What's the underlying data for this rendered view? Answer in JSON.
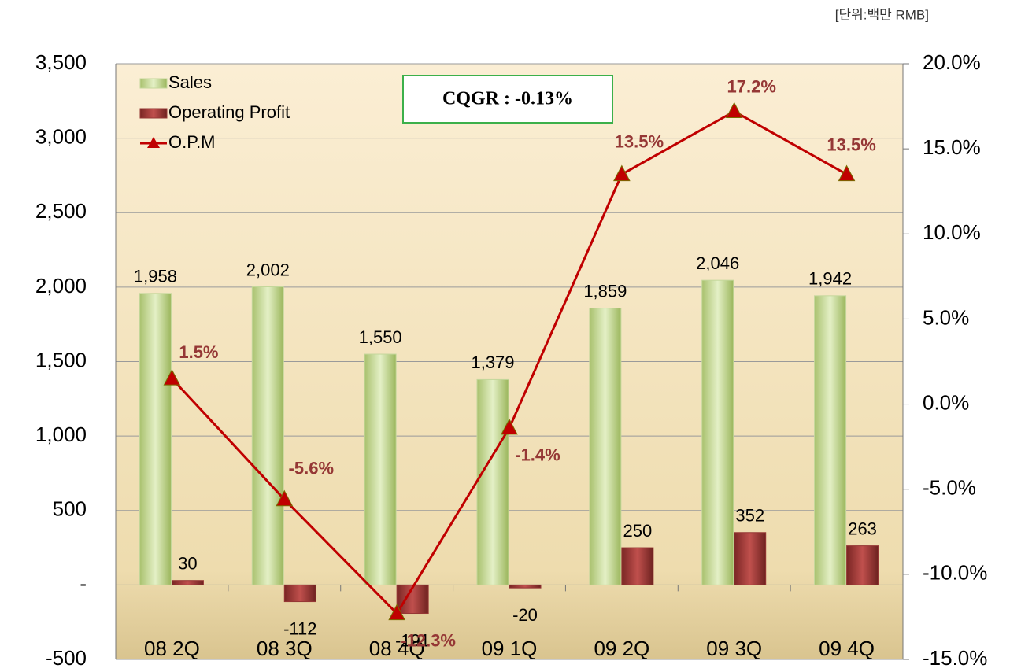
{
  "chart_data": {
    "type": "bar-line",
    "unit_note": "[단위:백만 RMB]",
    "annotation": "CQGR : -0.13%",
    "categories": [
      "08 2Q",
      "08 3Q",
      "08 4Q",
      "09 1Q",
      "09 2Q",
      "09 3Q",
      "09 4Q"
    ],
    "series": [
      {
        "name": "Sales",
        "type": "bar",
        "color": "#c4d79b",
        "values": [
          1958,
          2002,
          1550,
          1379,
          1859,
          2046,
          1942
        ],
        "value_labels": [
          "1,958",
          "2,002",
          "1,550",
          "1,379",
          "1,859",
          "2,046",
          "1,942"
        ]
      },
      {
        "name": "Operating Profit",
        "type": "bar",
        "color": "#953735",
        "values": [
          30,
          -112,
          -191,
          -20,
          250,
          352,
          263
        ]
      },
      {
        "name": "O.P.M",
        "type": "line",
        "axis": "y2",
        "color": "#c00000",
        "values": [
          1.5,
          -5.6,
          -12.3,
          -1.4,
          13.5,
          17.2,
          13.5
        ],
        "value_labels": [
          "1.5%",
          "-5.6%",
          "-12.3%",
          "-1.4%",
          "13.5%",
          "17.2%",
          "13.5%"
        ]
      }
    ],
    "ylim": [
      -500,
      3500
    ],
    "yticks": [
      -500,
      {
        "value": 0,
        "label": "-"
      },
      500,
      {
        "value": 1000,
        "label": "1,000"
      },
      {
        "value": 1500,
        "label": "1,500"
      },
      {
        "value": 2000,
        "label": "2,000"
      },
      {
        "value": 2500,
        "label": "2,500"
      },
      {
        "value": 3000,
        "label": "3,000"
      },
      {
        "value": 3500,
        "label": "3,500"
      }
    ],
    "y2lim": [
      -15,
      20
    ],
    "y2ticks": [
      {
        "value": -15,
        "label": "-15.0%"
      },
      {
        "value": -10,
        "label": "-10.0%"
      },
      {
        "value": -5,
        "label": "-5.0%"
      },
      {
        "value": 0,
        "label": "0.0%"
      },
      {
        "value": 5,
        "label": "5.0%"
      },
      {
        "value": 10,
        "label": "10.0%"
      },
      {
        "value": 15,
        "label": "15.0%"
      },
      {
        "value": 20,
        "label": "20.0%"
      }
    ],
    "grid": true,
    "legend": "upper left"
  }
}
